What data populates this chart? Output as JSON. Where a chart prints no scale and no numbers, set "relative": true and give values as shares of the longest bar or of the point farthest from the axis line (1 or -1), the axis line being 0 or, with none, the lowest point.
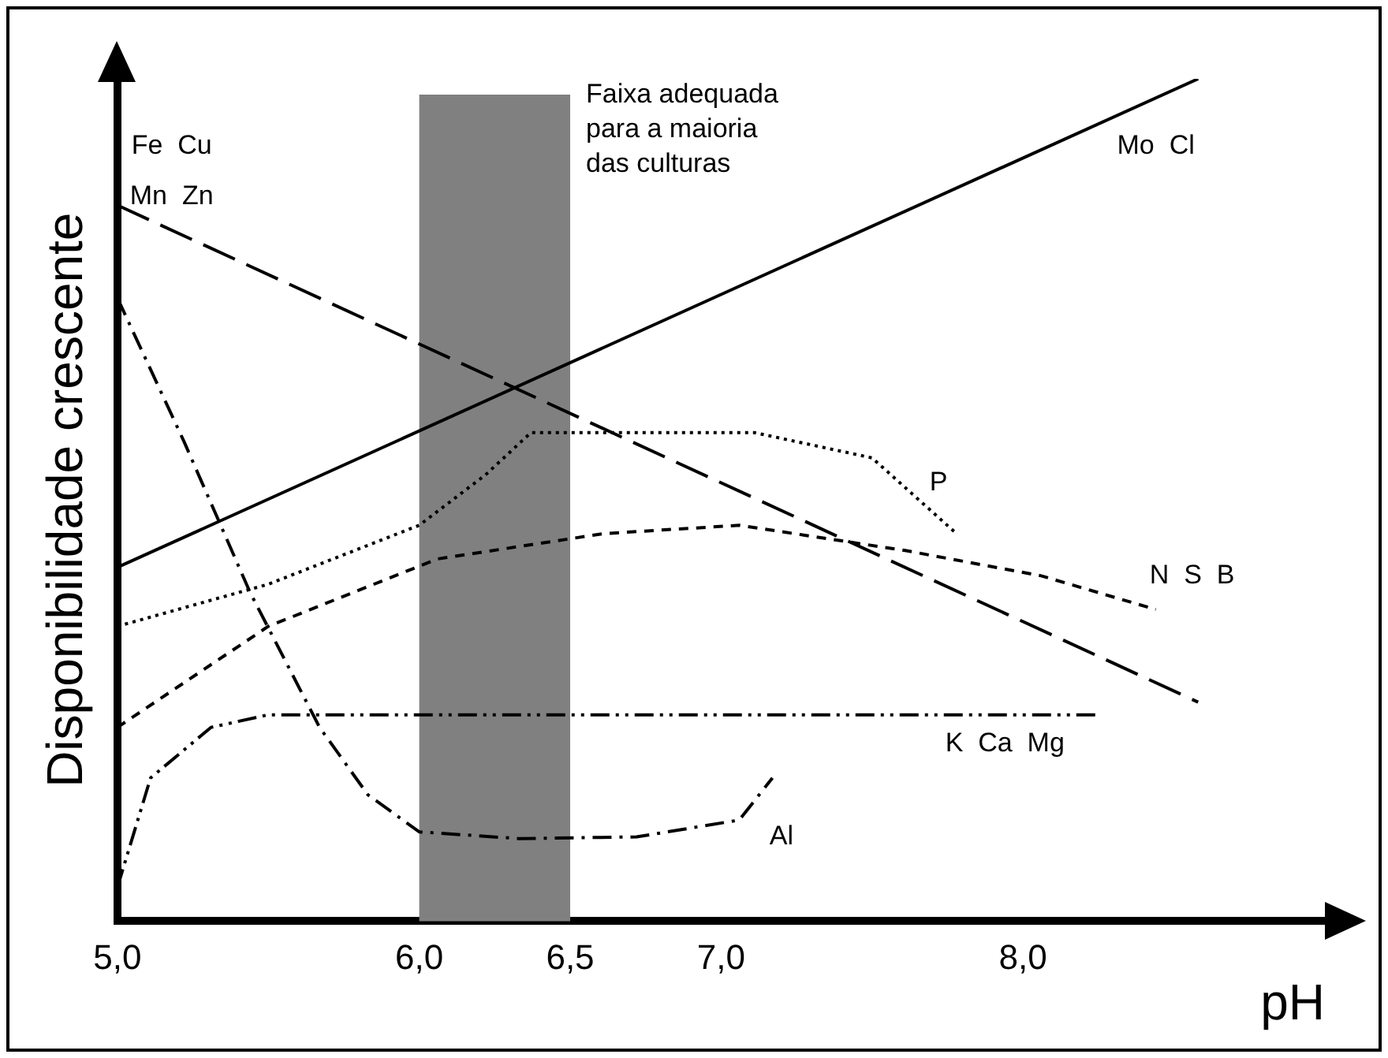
{
  "chart_data": {
    "type": "line",
    "relative": true,
    "ylabel": "Disponibilidade crescente",
    "xlabel": "pH",
    "xlim": [
      5,
      9
    ],
    "xticks": [
      {
        "value": 5,
        "label": "5,0"
      },
      {
        "value": 6,
        "label": "6,0"
      },
      {
        "value": 6.5,
        "label": "6,5"
      },
      {
        "value": 7,
        "label": "7,0"
      },
      {
        "value": 8,
        "label": "8,0"
      }
    ],
    "grid": false,
    "legend": false,
    "marker": "none",
    "series": [
      {
        "color": "#000000",
        "line_style": "solid",
        "x": [
          5,
          8.58
        ],
        "values": [
          0.42,
          1
        ]
      },
      {
        "color": "#000000",
        "line_style": "long_dashed",
        "x": [
          5,
          8.58
        ],
        "values": [
          0.85,
          0.26
        ]
      },
      {
        "color": "#000000",
        "line_style": "dotted",
        "x": [
          5,
          5.5,
          6,
          6.22,
          6.37,
          7.11,
          7.5,
          7.78
        ],
        "values": [
          0.35,
          0.4,
          0.47,
          0.53,
          0.58,
          0.58,
          0.55,
          0.46
        ]
      },
      {
        "color": "#000000",
        "line_style": "dashed",
        "x": [
          5,
          5.5,
          6.06,
          6.61,
          7.06,
          7.61,
          8.06,
          8.44
        ],
        "values": [
          0.23,
          0.35,
          0.43,
          0.46,
          0.47,
          0.44,
          0.41,
          0.37
        ]
      },
      {
        "color": "#000000",
        "line_style": "dashdotdot",
        "x": [
          5,
          5.11,
          5.31,
          5.5,
          8.25
        ],
        "values": [
          0.04,
          0.17,
          0.23,
          0.245,
          0.245
        ]
      },
      {
        "color": "#000000",
        "line_style": "dashdot",
        "x": [
          5,
          5.22,
          5.44,
          5.67,
          5.83,
          6,
          6.33,
          6.72,
          7.06,
          7.17
        ],
        "values": [
          0.74,
          0.57,
          0.39,
          0.23,
          0.15,
          0.106,
          0.098,
          0.1,
          0.12,
          0.17
        ]
      }
    ],
    "bands": [
      {
        "axis": "x",
        "from": 6,
        "to": 6.5,
        "label": "Faixa adequada para a maioria das culturas",
        "color": "#808080"
      }
    ],
    "annotations": [
      "Fe  Cu",
      "Mn  Zn",
      "Mo  Cl",
      "P",
      "N  S  B",
      "K  Ca  Mg",
      "Al"
    ]
  }
}
